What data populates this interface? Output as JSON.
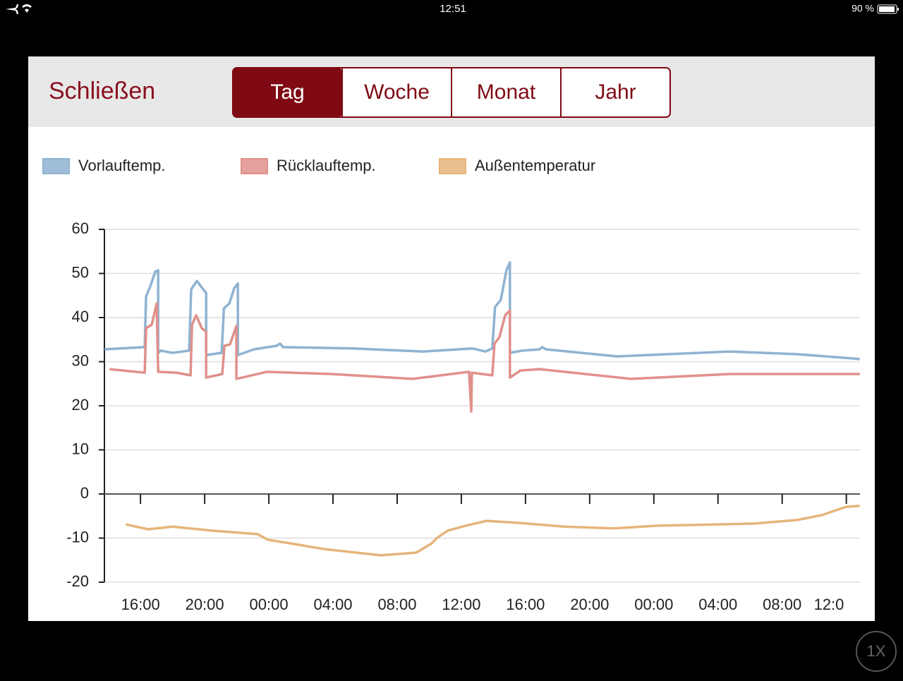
{
  "status_bar": {
    "time": "12:51",
    "battery": "90 %"
  },
  "header": {
    "close": "Schließen",
    "tabs": [
      "Tag",
      "Woche",
      "Monat",
      "Jahr"
    ],
    "active_tab": 0
  },
  "zoom_button": "1X",
  "chart_data": {
    "type": "line",
    "xlim": [
      13.75,
      60.85
    ],
    "ylim": [
      -20,
      60
    ],
    "yticks": [
      -20,
      -10,
      0,
      10,
      20,
      30,
      40,
      50,
      60
    ],
    "xticks": [
      {
        "value": 16,
        "label": "16:00"
      },
      {
        "value": 20,
        "label": "20:00"
      },
      {
        "value": 24,
        "label": "00:00"
      },
      {
        "value": 28,
        "label": "04:00"
      },
      {
        "value": 32,
        "label": "08:00"
      },
      {
        "value": 36,
        "label": "12:00"
      },
      {
        "value": 40,
        "label": "16:00"
      },
      {
        "value": 44,
        "label": "20:00"
      },
      {
        "value": 48,
        "label": "00:00"
      },
      {
        "value": 52,
        "label": "04:00"
      },
      {
        "value": 56,
        "label": "08:00"
      },
      {
        "value": 60,
        "label": "12:0"
      }
    ],
    "grid": true,
    "series": [
      {
        "name": "Vorlauftemp.",
        "color": "#8fb3d2",
        "x": [
          13.76,
          16.26,
          16.35,
          16.62,
          16.92,
          17.1,
          17.1,
          17.27,
          18.0,
          19.03,
          19.16,
          19.52,
          19.78,
          20.09,
          20.09,
          21.06,
          21.2,
          21.54,
          21.85,
          22.07,
          22.07,
          23.08,
          24.48,
          24.7,
          24.88,
          29.23,
          33.63,
          36.7,
          37.5,
          37.93,
          38.1,
          38.46,
          38.81,
          39.03,
          39.03,
          39.78,
          40.88,
          41.05,
          41.27,
          45.71,
          52.75,
          56.92,
          60.84
        ],
        "values": [
          32.8,
          33.3,
          44.8,
          47.2,
          50.4,
          50.7,
          32,
          32.5,
          32,
          32.5,
          46.4,
          48.3,
          47,
          45.6,
          31.5,
          32,
          42.1,
          43.2,
          46.7,
          47.7,
          31.5,
          32.8,
          33.6,
          34.1,
          33.3,
          33,
          32.3,
          33,
          32.3,
          33,
          42.4,
          44,
          50.7,
          52.5,
          32,
          32.5,
          32.8,
          33.3,
          32.8,
          31.2,
          32.3,
          31.7,
          30.6
        ]
      },
      {
        "name": "Rücklauftemp.",
        "color": "#e0908b",
        "x": [
          14.07,
          16.26,
          16.35,
          16.7,
          17.01,
          17.1,
          18.24,
          19.12,
          19.21,
          19.47,
          19.82,
          20.09,
          20.09,
          21.1,
          21.23,
          21.58,
          21.98,
          21.98,
          23.87,
          27.91,
          32.97,
          36.48,
          36.62,
          36.66,
          37.93,
          38.07,
          38.37,
          38.73,
          39.03,
          39.03,
          39.69,
          40.88,
          46.59,
          52.75,
          60.84
        ],
        "values": [
          28.3,
          27.5,
          37.6,
          38.4,
          43.2,
          27.7,
          27.5,
          26.9,
          38.4,
          40.5,
          37.6,
          36.8,
          26.4,
          27.2,
          33.6,
          33.9,
          38.1,
          26.1,
          27.7,
          27.2,
          26.1,
          27.7,
          18.7,
          27.5,
          26.9,
          34.1,
          35.5,
          40.5,
          41.6,
          26.4,
          28,
          28.3,
          26.1,
          27.2,
          27.2
        ]
      },
      {
        "name": "Außentemperatur",
        "color": "#e6b47a",
        "x": [
          15.08,
          16.48,
          18.02,
          20.44,
          23.3,
          23.96,
          24.84,
          27.47,
          30.99,
          33.19,
          34.15,
          34.5,
          35.16,
          36.26,
          37.58,
          39.78,
          42.42,
          45.49,
          48.13,
          54.29,
          56.92,
          58.46,
          60.0,
          60.84
        ],
        "values": [
          -6.9,
          -8,
          -7.4,
          -8.3,
          -9.1,
          -10.4,
          -10.9,
          -12.5,
          -13.9,
          -13.3,
          -11.2,
          -9.9,
          -8.3,
          -7.2,
          -6.1,
          -6.6,
          -7.4,
          -7.8,
          -7.2,
          -6.7,
          -5.9,
          -4.8,
          -2.9,
          -2.7
        ]
      }
    ]
  }
}
